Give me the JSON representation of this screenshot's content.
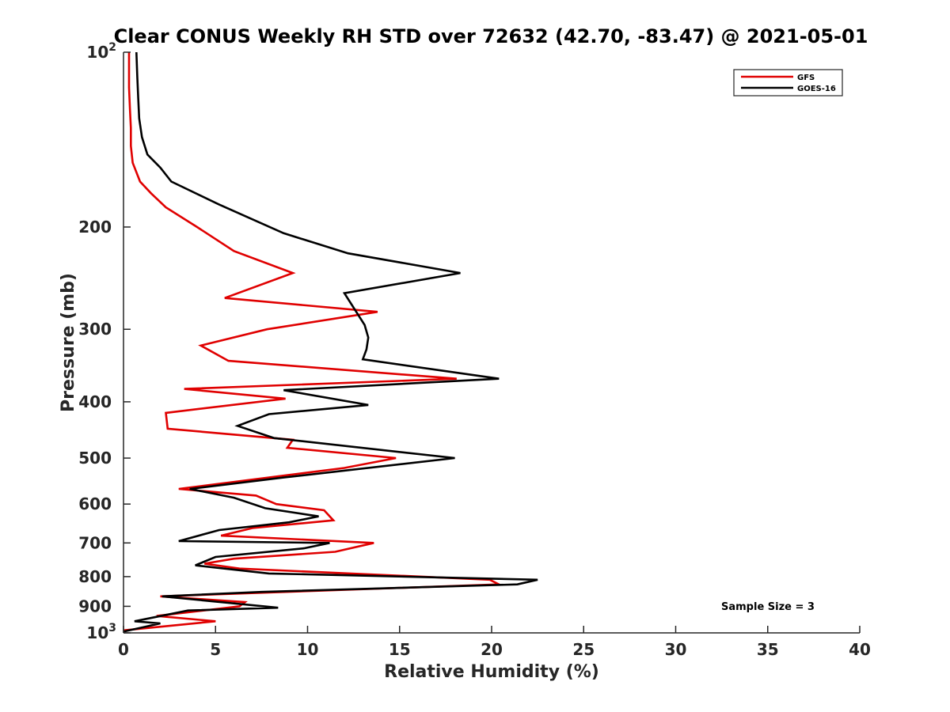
{
  "chart_data": {
    "type": "line",
    "title": "Clear CONUS Weekly RH STD over 72632 (42.70, -83.47) @ 2021-05-01",
    "xlabel": "Relative Humidity (%)",
    "ylabel": "Pressure (mb)",
    "xlim": [
      0,
      40
    ],
    "ylim": [
      100,
      1000
    ],
    "yscale": "log",
    "y_reversed": true,
    "x_ticks": [
      "0",
      "5",
      "10",
      "15",
      "20",
      "25",
      "30",
      "35",
      "40"
    ],
    "y_ticks": [
      {
        "value": 100,
        "label": "10",
        "sup": "2"
      },
      {
        "value": 200,
        "label": "200"
      },
      {
        "value": 300,
        "label": "300"
      },
      {
        "value": 400,
        "label": "400"
      },
      {
        "value": 500,
        "label": "500"
      },
      {
        "value": 600,
        "label": "600"
      },
      {
        "value": 700,
        "label": "700"
      },
      {
        "value": 800,
        "label": "800"
      },
      {
        "value": 900,
        "label": "900"
      },
      {
        "value": 1000,
        "label": "10",
        "sup": "3"
      }
    ],
    "legend_position": "top-right",
    "grid": false,
    "annotation": "Sample Size = 3",
    "series": [
      {
        "name": "GFS",
        "color": "#e00000",
        "points": [
          [
            0.3,
            100
          ],
          [
            0.3,
            105
          ],
          [
            0.3,
            115
          ],
          [
            0.35,
            125
          ],
          [
            0.4,
            135
          ],
          [
            0.4,
            145
          ],
          [
            0.5,
            155
          ],
          [
            0.9,
            167
          ],
          [
            1.5,
            175
          ],
          [
            2.3,
            185
          ],
          [
            4.0,
            200
          ],
          [
            6.0,
            220
          ],
          [
            9.2,
            240
          ],
          [
            5.5,
            265
          ],
          [
            13.8,
            280
          ],
          [
            7.8,
            300
          ],
          [
            4.2,
            320
          ],
          [
            5.7,
            340
          ],
          [
            18.1,
            365
          ],
          [
            3.3,
            380
          ],
          [
            8.8,
            395
          ],
          [
            2.3,
            418
          ],
          [
            2.4,
            445
          ],
          [
            9.2,
            465
          ],
          [
            8.9,
            480
          ],
          [
            14.8,
            500
          ],
          [
            12.0,
            520
          ],
          [
            3.0,
            565
          ],
          [
            7.2,
            580
          ],
          [
            8.3,
            600
          ],
          [
            10.9,
            615
          ],
          [
            11.4,
            640
          ],
          [
            7.0,
            660
          ],
          [
            5.3,
            680
          ],
          [
            13.6,
            700
          ],
          [
            11.5,
            725
          ],
          [
            6.0,
            745
          ],
          [
            4.4,
            760
          ],
          [
            6.3,
            775
          ],
          [
            19.9,
            810
          ],
          [
            20.4,
            825
          ],
          [
            2.0,
            865
          ],
          [
            6.6,
            885
          ],
          [
            6.3,
            900
          ],
          [
            1.8,
            935
          ],
          [
            5.0,
            955
          ],
          [
            0.0,
            990
          ]
        ]
      },
      {
        "name": "GOES-16",
        "color": "#000000",
        "points": [
          [
            0.7,
            100
          ],
          [
            0.75,
            110
          ],
          [
            0.8,
            120
          ],
          [
            0.85,
            130
          ],
          [
            1.0,
            140
          ],
          [
            1.3,
            150
          ],
          [
            2.0,
            158
          ],
          [
            2.6,
            167
          ],
          [
            5.2,
            183
          ],
          [
            8.7,
            205
          ],
          [
            12.2,
            222
          ],
          [
            18.3,
            240
          ],
          [
            12.0,
            260
          ],
          [
            13.1,
            295
          ],
          [
            13.3,
            310
          ],
          [
            13.2,
            325
          ],
          [
            13.0,
            338
          ],
          [
            20.4,
            365
          ],
          [
            8.7,
            382
          ],
          [
            13.3,
            405
          ],
          [
            7.9,
            420
          ],
          [
            6.2,
            440
          ],
          [
            8.2,
            462
          ],
          [
            18.0,
            500
          ],
          [
            8.7,
            540
          ],
          [
            3.6,
            565
          ],
          [
            6.0,
            585
          ],
          [
            7.7,
            610
          ],
          [
            10.6,
            630
          ],
          [
            9.0,
            645
          ],
          [
            5.2,
            665
          ],
          [
            3.0,
            695
          ],
          [
            11.2,
            700
          ],
          [
            9.8,
            715
          ],
          [
            5.0,
            740
          ],
          [
            3.9,
            765
          ],
          [
            7.9,
            790
          ],
          [
            22.5,
            810
          ],
          [
            21.4,
            825
          ],
          [
            7.5,
            850
          ],
          [
            2.1,
            865
          ],
          [
            8.4,
            905
          ],
          [
            3.5,
            915
          ],
          [
            0.6,
            955
          ],
          [
            2.0,
            963
          ],
          [
            0.0,
            995
          ]
        ]
      }
    ]
  }
}
